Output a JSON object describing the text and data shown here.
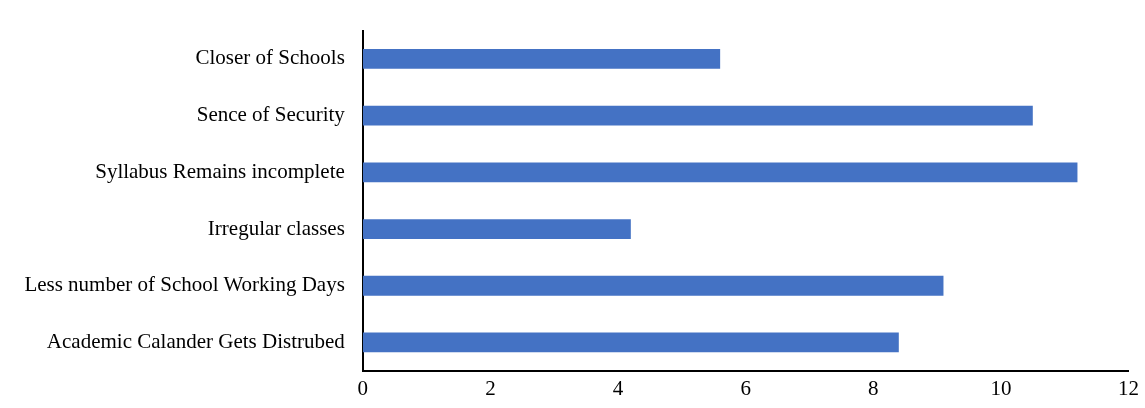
{
  "chart_data": {
    "type": "bar",
    "orientation": "horizontal",
    "categories": [
      "Closer of Schools",
      "Sence of Security",
      "Syllabus Remains incomplete",
      "Irregular classes",
      "Less number of School Working Days",
      "Academic Calander Gets Distrubed"
    ],
    "values": [
      5.6,
      10.5,
      11.2,
      4.2,
      9.1,
      8.4
    ],
    "color": "#4472c4",
    "xlim": [
      0,
      12
    ],
    "xticks": [
      0,
      2,
      4,
      6,
      8,
      10,
      12
    ],
    "grid": false,
    "legend": false
  }
}
